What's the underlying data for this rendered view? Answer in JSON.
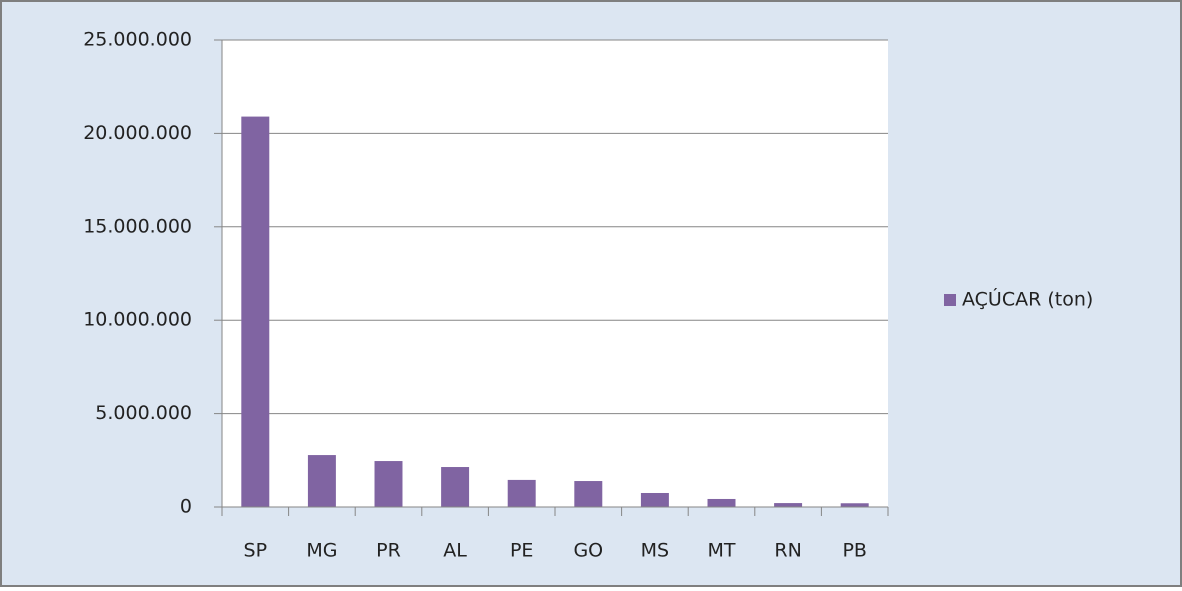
{
  "chart_data": {
    "type": "bar",
    "categories": [
      "SP",
      "MG",
      "PR",
      "AL",
      "PE",
      "GO",
      "MS",
      "MT",
      "RN",
      "PB"
    ],
    "series": [
      {
        "name": "AÇÚCAR (ton)",
        "color": "#8064a2",
        "values": [
          20900000,
          2780000,
          2460000,
          2140000,
          1450000,
          1390000,
          750000,
          430000,
          210000,
          200000
        ]
      }
    ],
    "ylim": [
      0,
      25000000
    ],
    "yticks": [
      0,
      {
        "value": 5000000,
        "label": "5.000.000"
      },
      {
        "value": 10000000,
        "label": "10.000.000"
      },
      {
        "value": 15000000,
        "label": "15.000.000"
      },
      {
        "value": 20000000,
        "label": "20.000.000"
      },
      {
        "value": 25000000,
        "label": "25.000.000"
      }
    ],
    "grid": true,
    "legend": "right"
  }
}
